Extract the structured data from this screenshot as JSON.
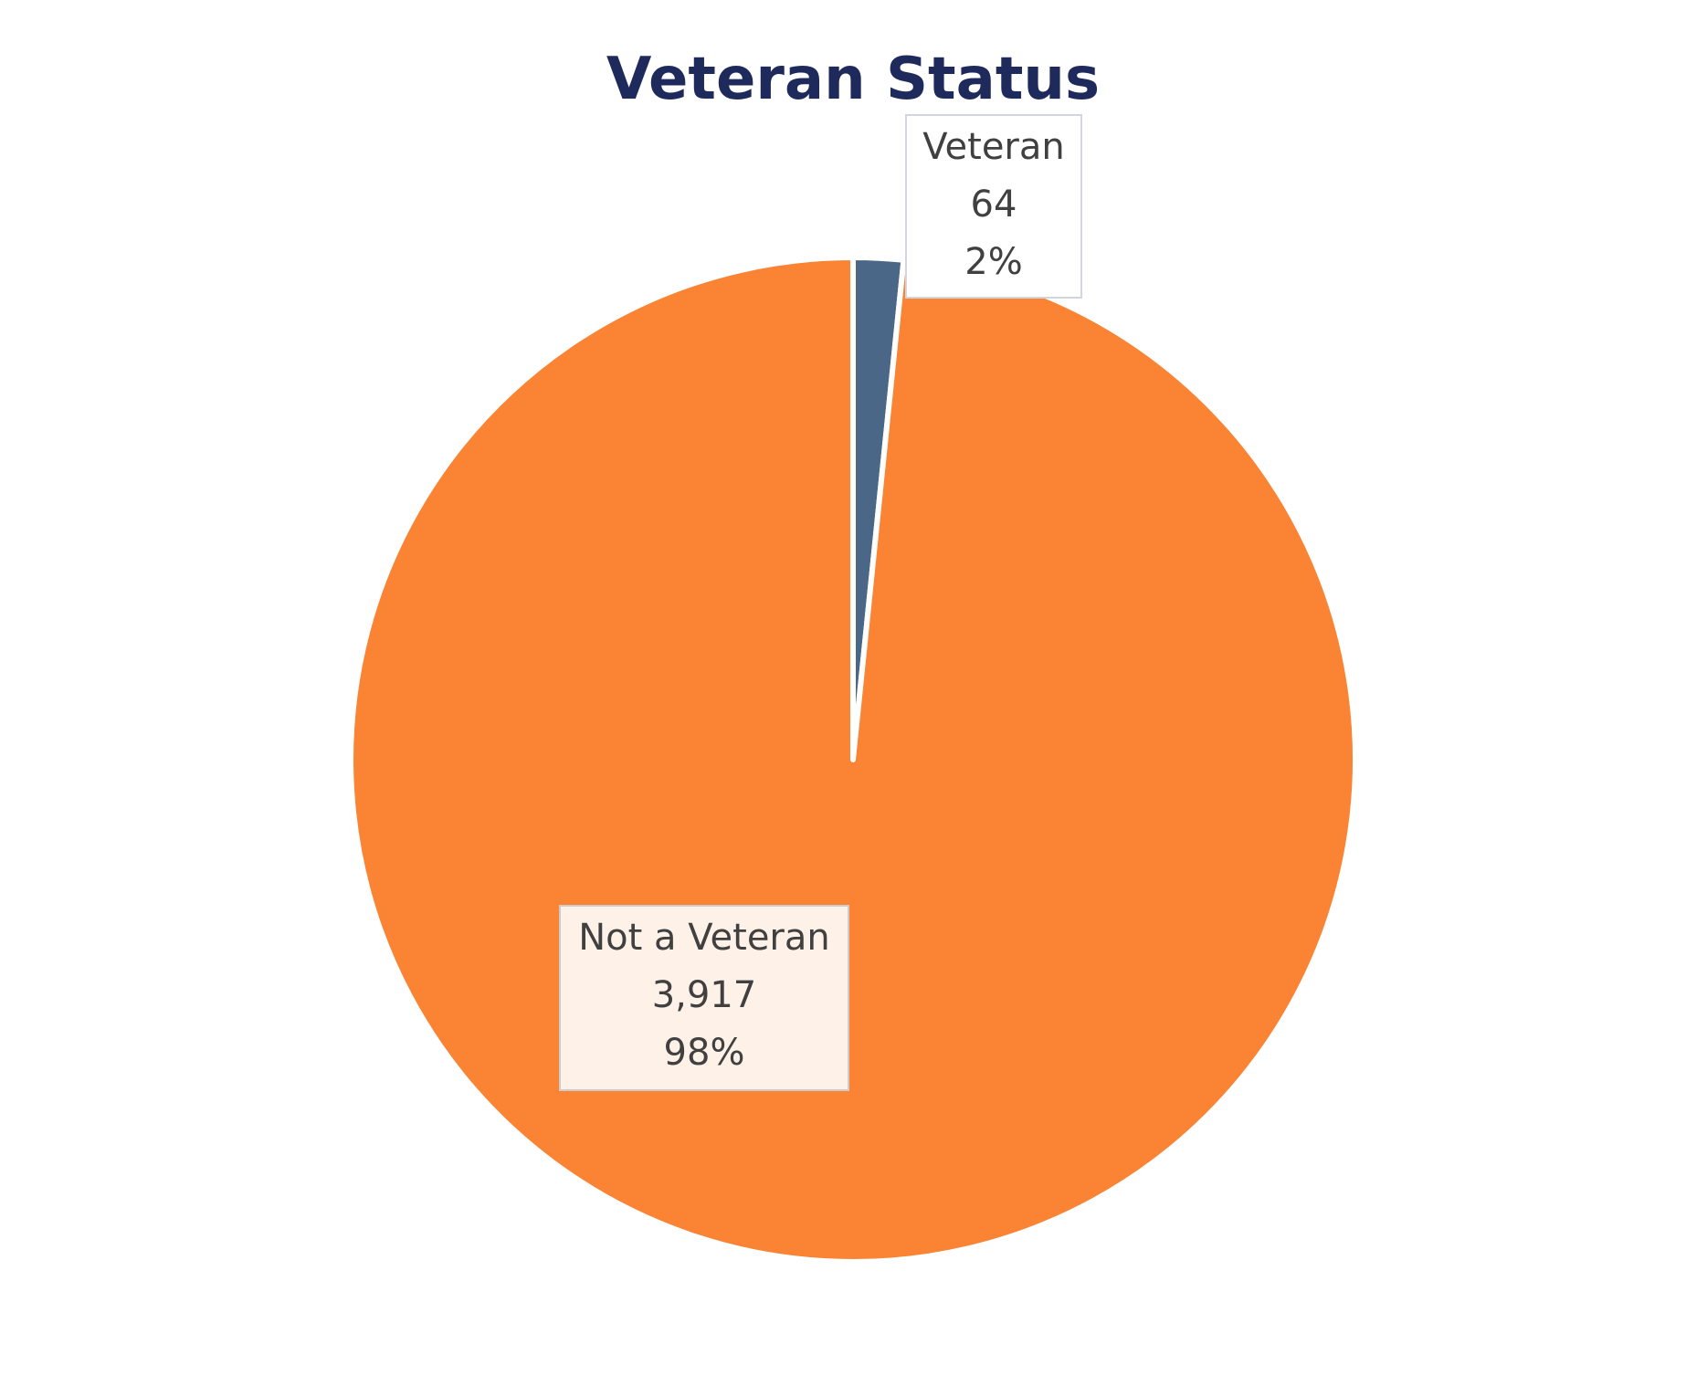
{
  "colors": {
    "title": "#1f2a5c",
    "label_text": "#404040",
    "slice_border": "#ffffff"
  },
  "chart_data": {
    "type": "pie",
    "title": "Veteran Status",
    "start_angle_deg": 0,
    "direction": "clockwise",
    "slices": [
      {
        "name": "Veteran",
        "value": 64,
        "value_label": "64",
        "percent_label": "2%",
        "color": "#4a6787",
        "label_bg": "#ffffff",
        "label_border": "#cfd6e0"
      },
      {
        "name": "Not a Veteran",
        "value": 3917,
        "value_label": "3,917",
        "percent_label": "98%",
        "color": "#fa8334",
        "label_bg": "#fef1e8",
        "label_border": "#cccccc"
      }
    ]
  }
}
